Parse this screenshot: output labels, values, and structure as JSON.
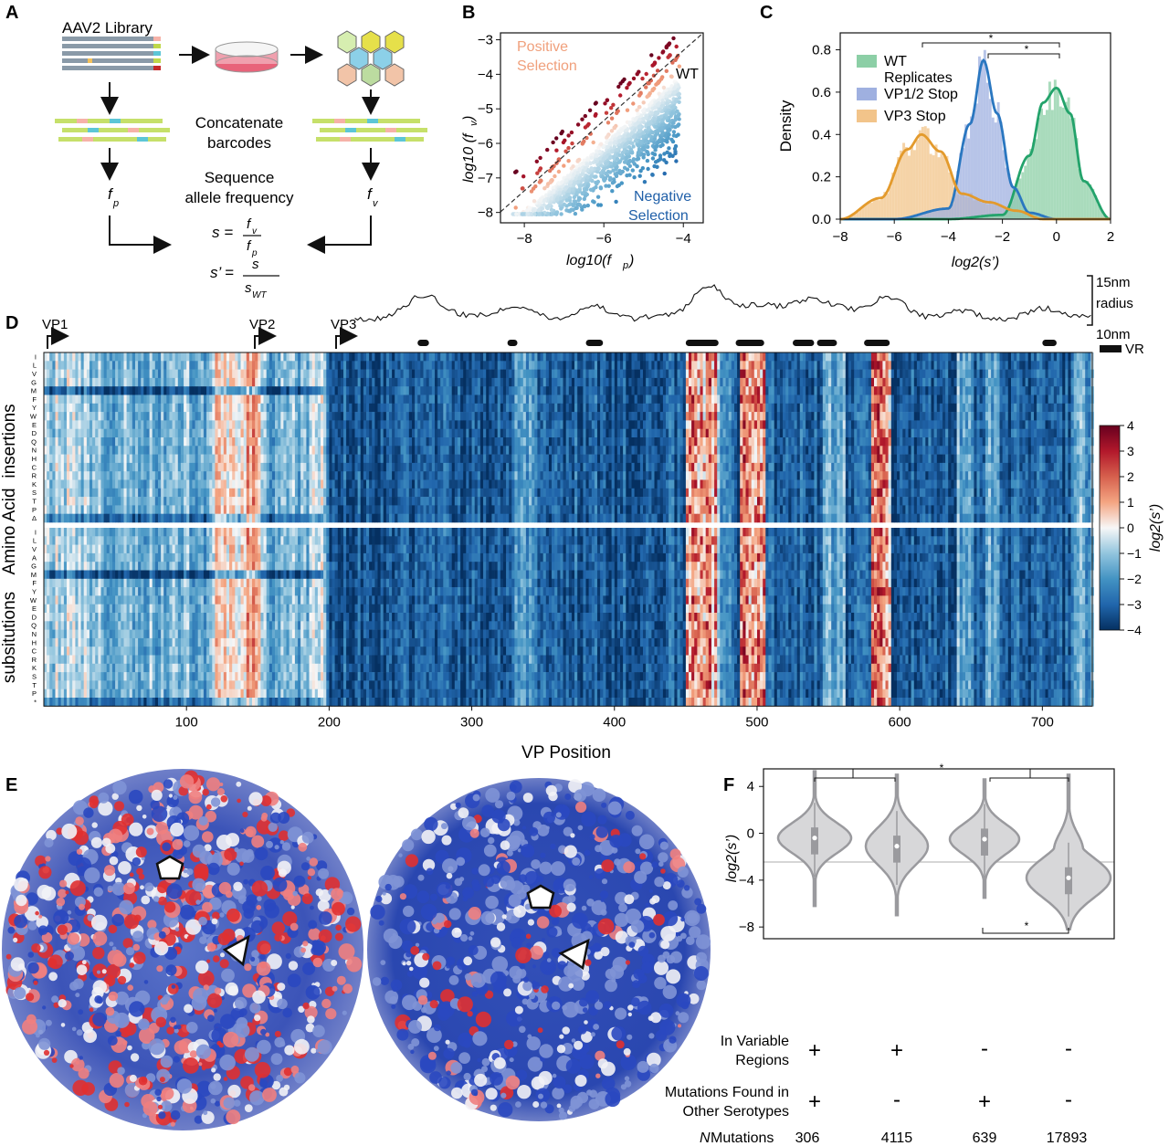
{
  "panels": {
    "A": {
      "letter": "A",
      "library_label": "AAV2 Library",
      "concat_label_1": "Concatenate",
      "concat_label_2": "barcodes",
      "seq_label_1": "Sequence",
      "seq_label_2": "allele frequency",
      "fp_label": "f",
      "fp_sub": "p",
      "fv_label": "f",
      "fv_sub": "v",
      "eq1_lhs": "s =",
      "eq1_num": "f",
      "eq1_num_sub": "v",
      "eq1_den": "f",
      "eq1_den_sub": "p",
      "eq2_lhs": "s’ =",
      "eq2_num": "s",
      "eq2_den": "s",
      "eq2_den_sub": "WT"
    },
    "B": {
      "letter": "B",
      "positive_1": "Positive",
      "positive_2": "Selection",
      "negative_1": "Negative",
      "negative_2": "Selection",
      "wt_label": "WT",
      "xlabel": "log10(f",
      "xlabel_sub": "p",
      "ylabel": "log10 (f",
      "ylabel_sub": "v",
      "xticks": [
        "−8",
        "−6",
        "−4"
      ],
      "yticks": [
        "−3",
        "−4",
        "−5",
        "−6",
        "−7",
        "−8"
      ]
    },
    "C": {
      "letter": "C",
      "ylabel": "Density",
      "xlabel": "log2(s’)",
      "xticks": [
        "−8",
        "−6",
        "−4",
        "−2",
        "0",
        "2"
      ],
      "yticks": [
        "0.0",
        "0.2",
        "0.4",
        "0.6",
        "0.8"
      ],
      "legend": [
        {
          "name_1": "WT",
          "name_2": "Replicates",
          "color": "#8ccfa6"
        },
        {
          "name_1": "VP1/2 Stop",
          "name_2": "",
          "color": "#9fb0e0"
        },
        {
          "name_1": "VP3 Stop",
          "name_2": "",
          "color": "#f2c48a"
        }
      ],
      "sig": [
        "*",
        "*"
      ]
    },
    "D": {
      "letter": "D",
      "vp_labels": [
        "VP1",
        "VP2",
        "VP3"
      ],
      "radius_top": "15nm",
      "radius_mid": "radius",
      "radius_bot": "10nm",
      "vr_label": "VR",
      "xlabel": "VP Position",
      "xticks": [
        "100",
        "200",
        "300",
        "400",
        "500",
        "600",
        "700"
      ],
      "ylabel_outer": "Amino Acid",
      "ylabel_ins": "insertions",
      "ylabel_sub": "subsitutions",
      "row_letters": [
        "I",
        "L",
        "V",
        "G",
        "M",
        "F",
        "Y",
        "W",
        "E",
        "D",
        "Q",
        "N",
        "H",
        "C",
        "R",
        "K",
        "S",
        "T",
        "P",
        "Δ",
        "I",
        "L",
        "V",
        "A",
        "G",
        "M",
        "F",
        "Y",
        "W",
        "E",
        "D",
        "Q",
        "N",
        "H",
        "C",
        "R",
        "K",
        "S",
        "T",
        "P",
        "*"
      ],
      "colorbar_ticks": [
        "4",
        "3",
        "2",
        "1",
        "0",
        "−1",
        "−2",
        "−3",
        "−4"
      ],
      "colorbar_label": "log2(s’)"
    },
    "E": {
      "letter": "E"
    },
    "F": {
      "letter": "F",
      "ylabel": "log2(s’)",
      "yticks": [
        "4",
        "0",
        "−4",
        "−8"
      ],
      "row1_label_1": "In Variable",
      "row1_label_2": "Regions",
      "row2_label_1": "Mutations Found in",
      "row2_label_2": "Other Serotypes",
      "row3_label": "N",
      "row3_label_rest": " Mutations",
      "variable_regions": [
        "+",
        "+",
        "-",
        "-"
      ],
      "other_serotypes": [
        "+",
        "-",
        "+",
        "-"
      ],
      "n_mutations": [
        "306",
        "4115",
        "639",
        "17893"
      ],
      "sig": [
        "*",
        "*"
      ]
    }
  },
  "chart_data": [
    {
      "type": "scatter",
      "panel": "B",
      "xlabel": "log10(fp)",
      "ylabel": "log10 (fv)",
      "xlim": [
        -8.6,
        -3.5
      ],
      "ylim": [
        -8.3,
        -2.8
      ],
      "reference_line": "y = x (WT)",
      "annotations": [
        "Positive Selection",
        "Negative Selection",
        "WT"
      ]
    },
    {
      "type": "line",
      "panel": "C",
      "xlabel": "log2(s’)",
      "ylabel": "Density",
      "xlim": [
        -8,
        2
      ],
      "ylim": [
        0,
        0.88
      ],
      "series": [
        {
          "name": "WT Replicates",
          "x": [
            -4,
            -2,
            -1,
            -0.5,
            0,
            0.5,
            1,
            2
          ],
          "y": [
            0.0,
            0.02,
            0.3,
            0.55,
            0.62,
            0.5,
            0.18,
            0.0
          ]
        },
        {
          "name": "VP1/2 Stop",
          "x": [
            -6,
            -4,
            -3.2,
            -2.7,
            -2.2,
            -1.6,
            -1,
            0
          ],
          "y": [
            0.0,
            0.05,
            0.45,
            0.75,
            0.5,
            0.15,
            0.03,
            0.0
          ]
        },
        {
          "name": "VP3 Stop",
          "x": [
            -8,
            -6.5,
            -5.5,
            -5,
            -4.3,
            -3.5,
            -2.5,
            -1.5,
            -0.5
          ],
          "y": [
            0.0,
            0.1,
            0.33,
            0.4,
            0.32,
            0.12,
            0.08,
            0.04,
            0.0
          ]
        }
      ]
    },
    {
      "type": "heatmap",
      "panel": "D",
      "xlabel": "VP Position",
      "ylabel": "Amino Acid",
      "xlim": [
        1,
        735
      ],
      "color_range": [
        -4,
        4
      ],
      "variable_regions_positions": [
        [
          262,
          270
        ],
        [
          325,
          332
        ],
        [
          380,
          392
        ],
        [
          450,
          473
        ],
        [
          485,
          505
        ],
        [
          525,
          540
        ],
        [
          542,
          556
        ],
        [
          575,
          593
        ],
        [
          700,
          710
        ]
      ]
    },
    {
      "type": "violin",
      "panel": "F",
      "ylabel": "log2(s’)",
      "ylim": [
        -9,
        5.5
      ],
      "categories": [
        "+/+",
        "+/-",
        "-/+",
        "-/-"
      ],
      "medians": [
        -0.4,
        -1.1,
        -0.5,
        -3.8
      ],
      "n": [
        306,
        4115,
        639,
        17893
      ]
    }
  ]
}
